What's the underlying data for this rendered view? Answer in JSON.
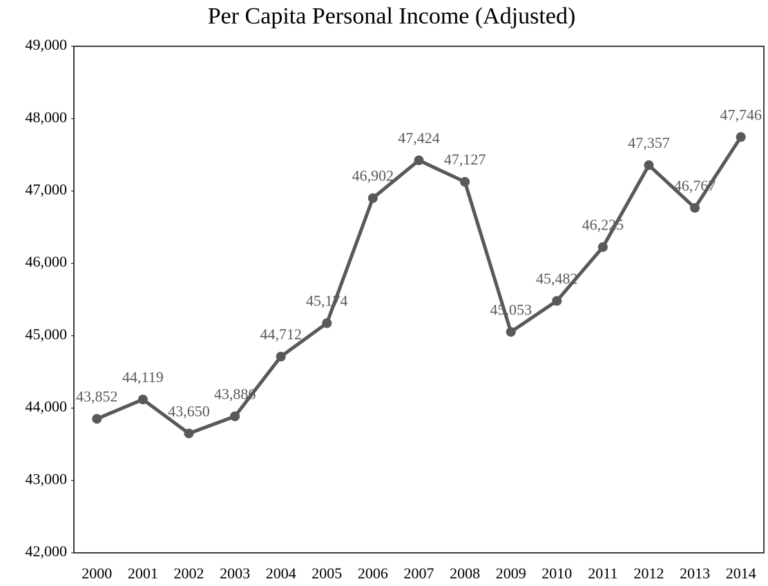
{
  "chart_data": {
    "type": "line",
    "title": "Per Capita Personal Income (Adjusted)",
    "categories": [
      "2000",
      "2001",
      "2002",
      "2003",
      "2004",
      "2005",
      "2006",
      "2007",
      "2008",
      "2009",
      "2010",
      "2011",
      "2012",
      "2013",
      "2014"
    ],
    "series": [
      {
        "color": "#595959",
        "values": [
          43852,
          44119,
          43650,
          43886,
          44712,
          45174,
          46902,
          47424,
          47127,
          45053,
          45482,
          46225,
          47357,
          46767,
          47746
        ],
        "value_labels": [
          "43,852",
          "44,119",
          "43,650",
          "43,886",
          "44,712",
          "45,174",
          "46,902",
          "47,424",
          "47,127",
          "45,053",
          "45,482",
          "46,225",
          "47,357",
          "46,767",
          "47,746"
        ]
      }
    ],
    "ylim": [
      42000,
      49000
    ],
    "yticks": [
      {
        "value": 42000,
        "label": "42,000"
      },
      {
        "value": 43000,
        "label": "43,000"
      },
      {
        "value": 44000,
        "label": "44,000"
      },
      {
        "value": 45000,
        "label": "45,000"
      },
      {
        "value": 46000,
        "label": "46,000"
      },
      {
        "value": 47000,
        "label": "47,000"
      },
      {
        "value": 48000,
        "label": "48,000"
      },
      {
        "value": 49000,
        "label": "49,000"
      }
    ],
    "grid": false
  }
}
